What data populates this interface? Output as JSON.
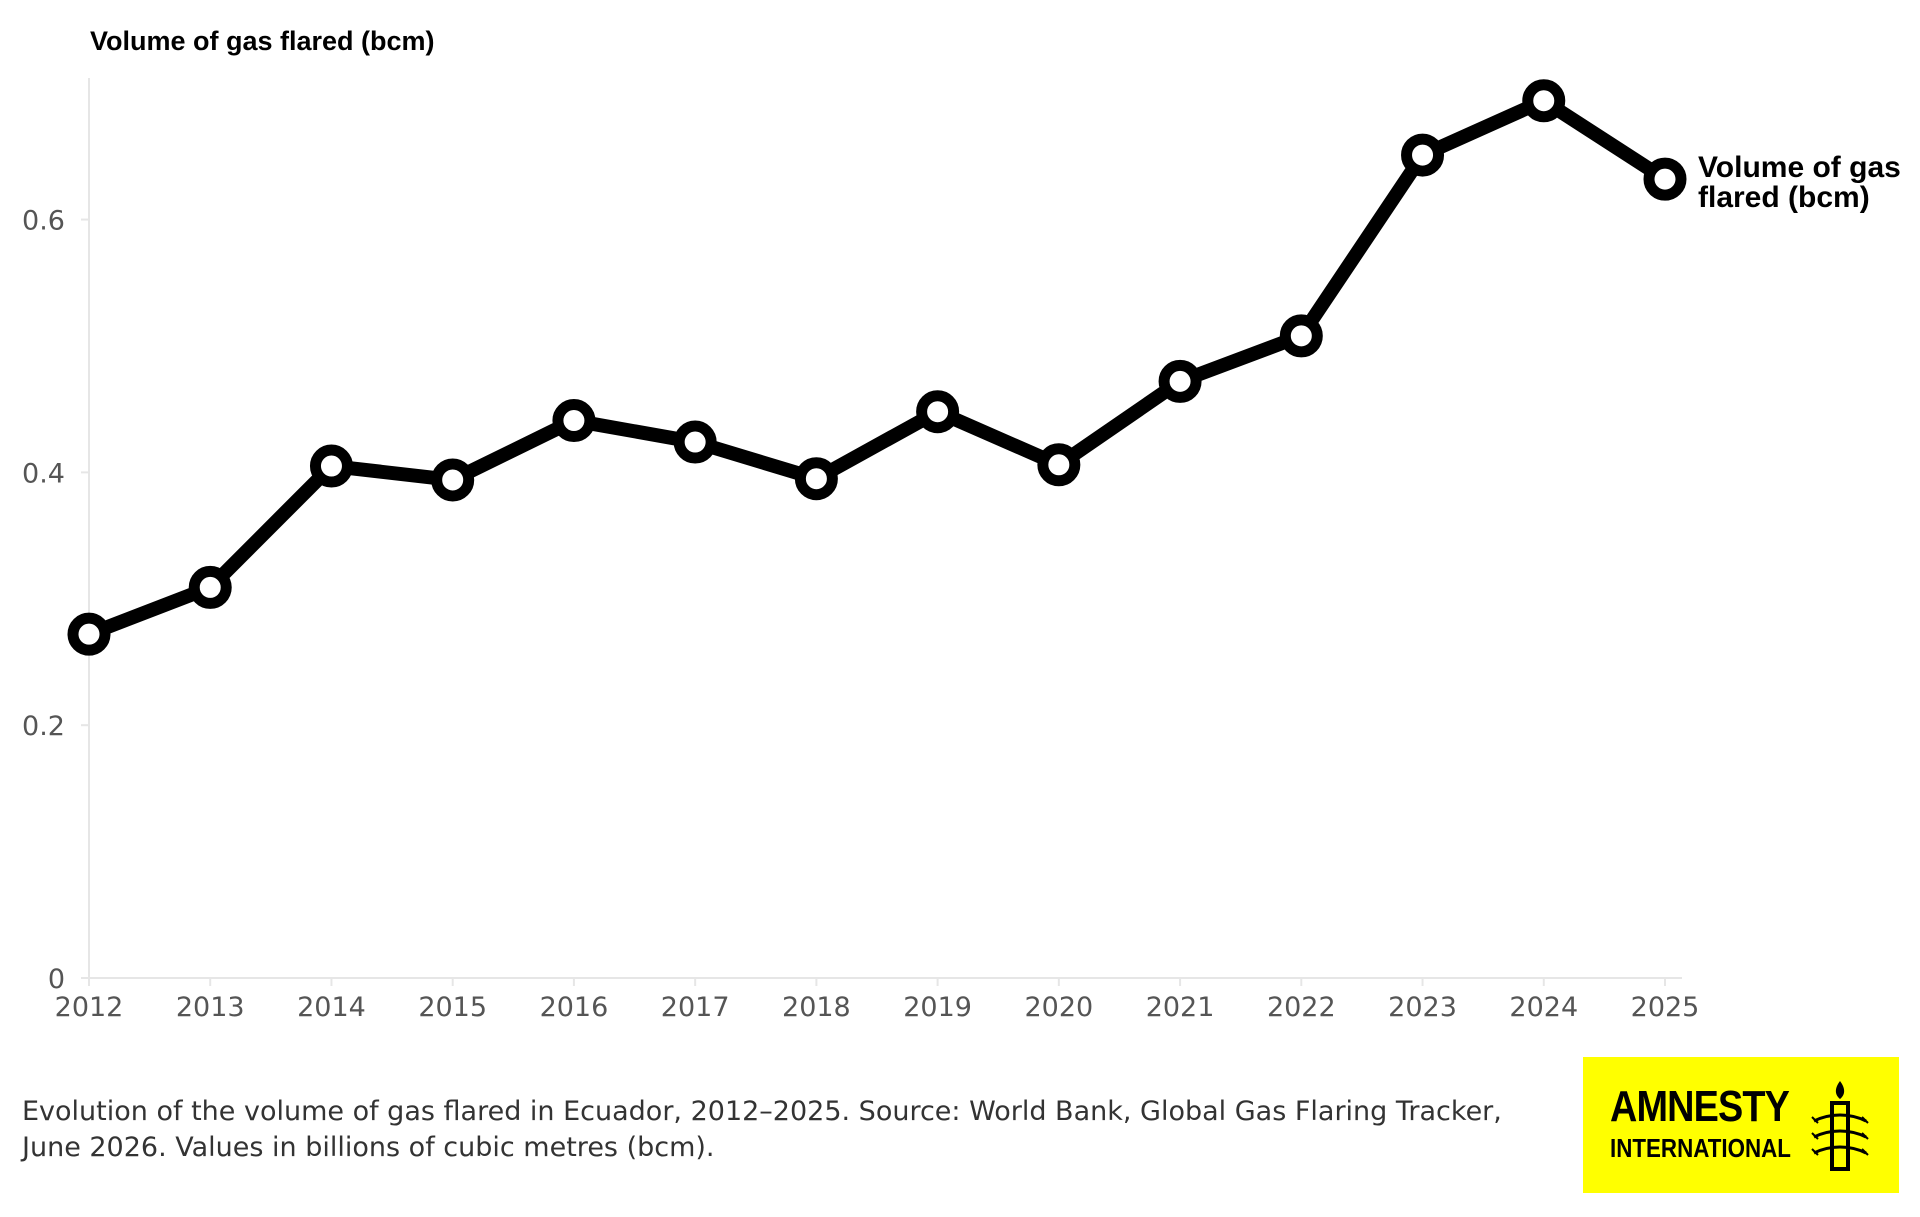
{
  "chart_data": {
    "type": "line",
    "title": "",
    "ylabel": "Volume of gas flared (bcm)",
    "xlabel": "",
    "x": [
      2012,
      2013,
      2014,
      2015,
      2016,
      2017,
      2018,
      2019,
      2020,
      2021,
      2022,
      2023,
      2024,
      2025
    ],
    "series": [
      {
        "name": "Volume of gas flared (bcm)",
        "values": [
          0.272,
          0.309,
          0.405,
          0.394,
          0.441,
          0.424,
          0.395,
          0.448,
          0.406,
          0.472,
          0.508,
          0.651,
          0.694,
          0.632
        ]
      }
    ],
    "ylim": [
      0,
      0.712
    ],
    "xlim": [
      2012,
      2025
    ],
    "yticks": [
      0,
      0.2,
      0.4,
      0.6
    ],
    "ytick_labels": [
      "0",
      "0.2",
      "0.4",
      "0.6"
    ],
    "xtick_labels": [
      "2012",
      "2013",
      "2014",
      "2015",
      "2016",
      "2017",
      "2018",
      "2019",
      "2020",
      "2021",
      "2022",
      "2023",
      "2024",
      "2025"
    ],
    "end_label_lines": [
      "Volume of gas",
      "flared (bcm)"
    ],
    "grid": false,
    "legend": "direct-label-right",
    "line_color": "#000000"
  },
  "caption": "Evolution of the volume of gas flared in Ecuador, 2012–2025. Source: World Bank, Global Gas Flaring Tracker, June 2026. Values in billions of cubic metres (bcm).",
  "logo": {
    "line1": "AMNESTY",
    "line2": "INTERNATIONAL",
    "background": "#ffff00",
    "icon": "candle-in-barbed-wire-icon"
  }
}
